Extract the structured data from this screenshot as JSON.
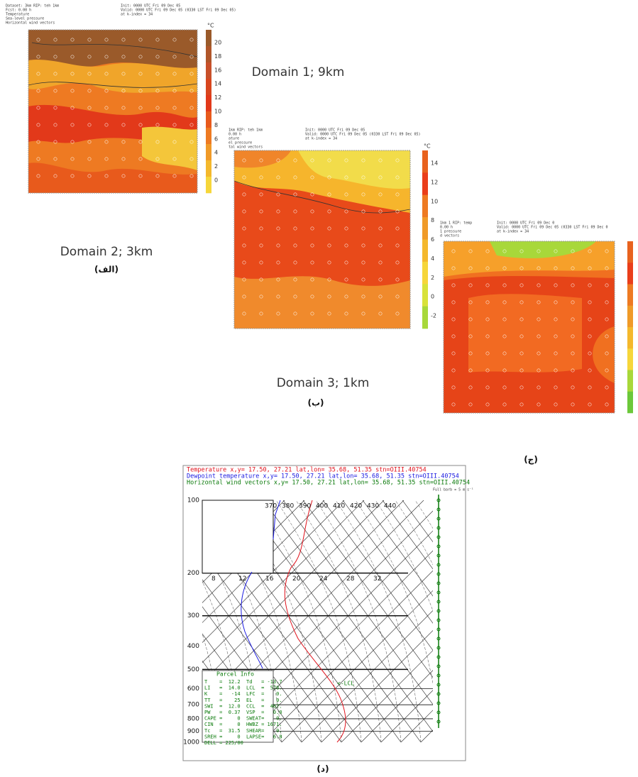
{
  "domain_1_caption": "Domain 1; 9km",
  "panels": [
    {
      "header_left": [
        "Dataset: 3km RIP: teh 1km",
        "Fcst: 0.00 h",
        "Temperature",
        "Sea-level pressure",
        "Horizontal wind vectors"
      ],
      "header_right": [
        "Init: 0000 UTC Fri 09 Dec 05",
        "Valid: 0000 UTC Fri 09 Dec 05 (0330 LST Fri 09 Dec 05)",
        "at k-index = 34"
      ],
      "unit": "°C",
      "colorbar_ticks": [
        20,
        18,
        16,
        14,
        12,
        10,
        8,
        6,
        4,
        2,
        0
      ],
      "caption": "Domain 2; 3km",
      "label": "(الف)"
    },
    {
      "header_left": [
        "1km RIP: teh 1km",
        "0.00 h",
        "ature",
        "el pressure",
        "tal wind vectors"
      ],
      "header_right": [
        "Init: 0000 UTC Fri 09 Dec 05",
        "Valid: 0000 UTC Fri 09 Dec 05 (0330 LST Fri 09 Dec 05)",
        "at k-index = 34"
      ],
      "unit": "°C",
      "colorbar_ticks": [
        14,
        12,
        10,
        8,
        6,
        4,
        2,
        0,
        -2
      ],
      "caption": "Domain 3; 1km",
      "label": "(ب)"
    },
    {
      "header_left": [
        "1km 1 RIP: temp",
        "0.00 h",
        "1 pressure",
        "d vectors"
      ],
      "header_right": [
        "Init: 0000 UTC Fri 09 Dec 0",
        "Valid: 0000 UTC Fri 09 Dec 05 (0330 LST Fri 09 Dec 0",
        "at k-index = 34"
      ],
      "label": "(ج)"
    }
  ],
  "skewt": {
    "header": [
      "Temperature       x,y= 17.50, 27.21   lat,lon= 35.68, 51.35   stn=OIII.40754",
      "Dewpoint temperature   x,y= 17.50, 27.21   lat,lon= 35.68, 51.35   stn=OIII.40754",
      "Horizontal wind vectors x,y= 17.50, 27.21   lat,lon= 35.68, 51.35   stn=OIII.40754"
    ],
    "pressure_labels": [
      100,
      200,
      300,
      400,
      500,
      600,
      700,
      800,
      900,
      1000
    ],
    "top_labels": [
      370,
      380,
      390,
      400,
      410,
      420,
      430,
      440
    ],
    "temp_labels": [
      8,
      12,
      16,
      20,
      24,
      28,
      32
    ],
    "wind_label": "Full barb = 5 m s⁻¹",
    "parcel_title": "Parcel Info",
    "parcel_info": [
      "T    =  12.2  Td   = -13.7",
      "LI   =  14.0  LCL  =  578.",
      "K    =   -14  LFC  =    0.",
      "TT   =    25  EL   =    0.",
      "SWI  =  12.0  CCL  =  467.",
      "PW   =  0.37  VSP  =   0.0",
      "CAPE =     0  SWEAT=    0.",
      "CIN  =     0  HWBZ = 1671.",
      "Tc   =  31.5  SHEAR=    0.",
      "SREH =     0  LAPSE=   6.8",
      "DELL = 225/00"
    ],
    "lcl_label": "<-LCL",
    "label": "(د)"
  }
}
